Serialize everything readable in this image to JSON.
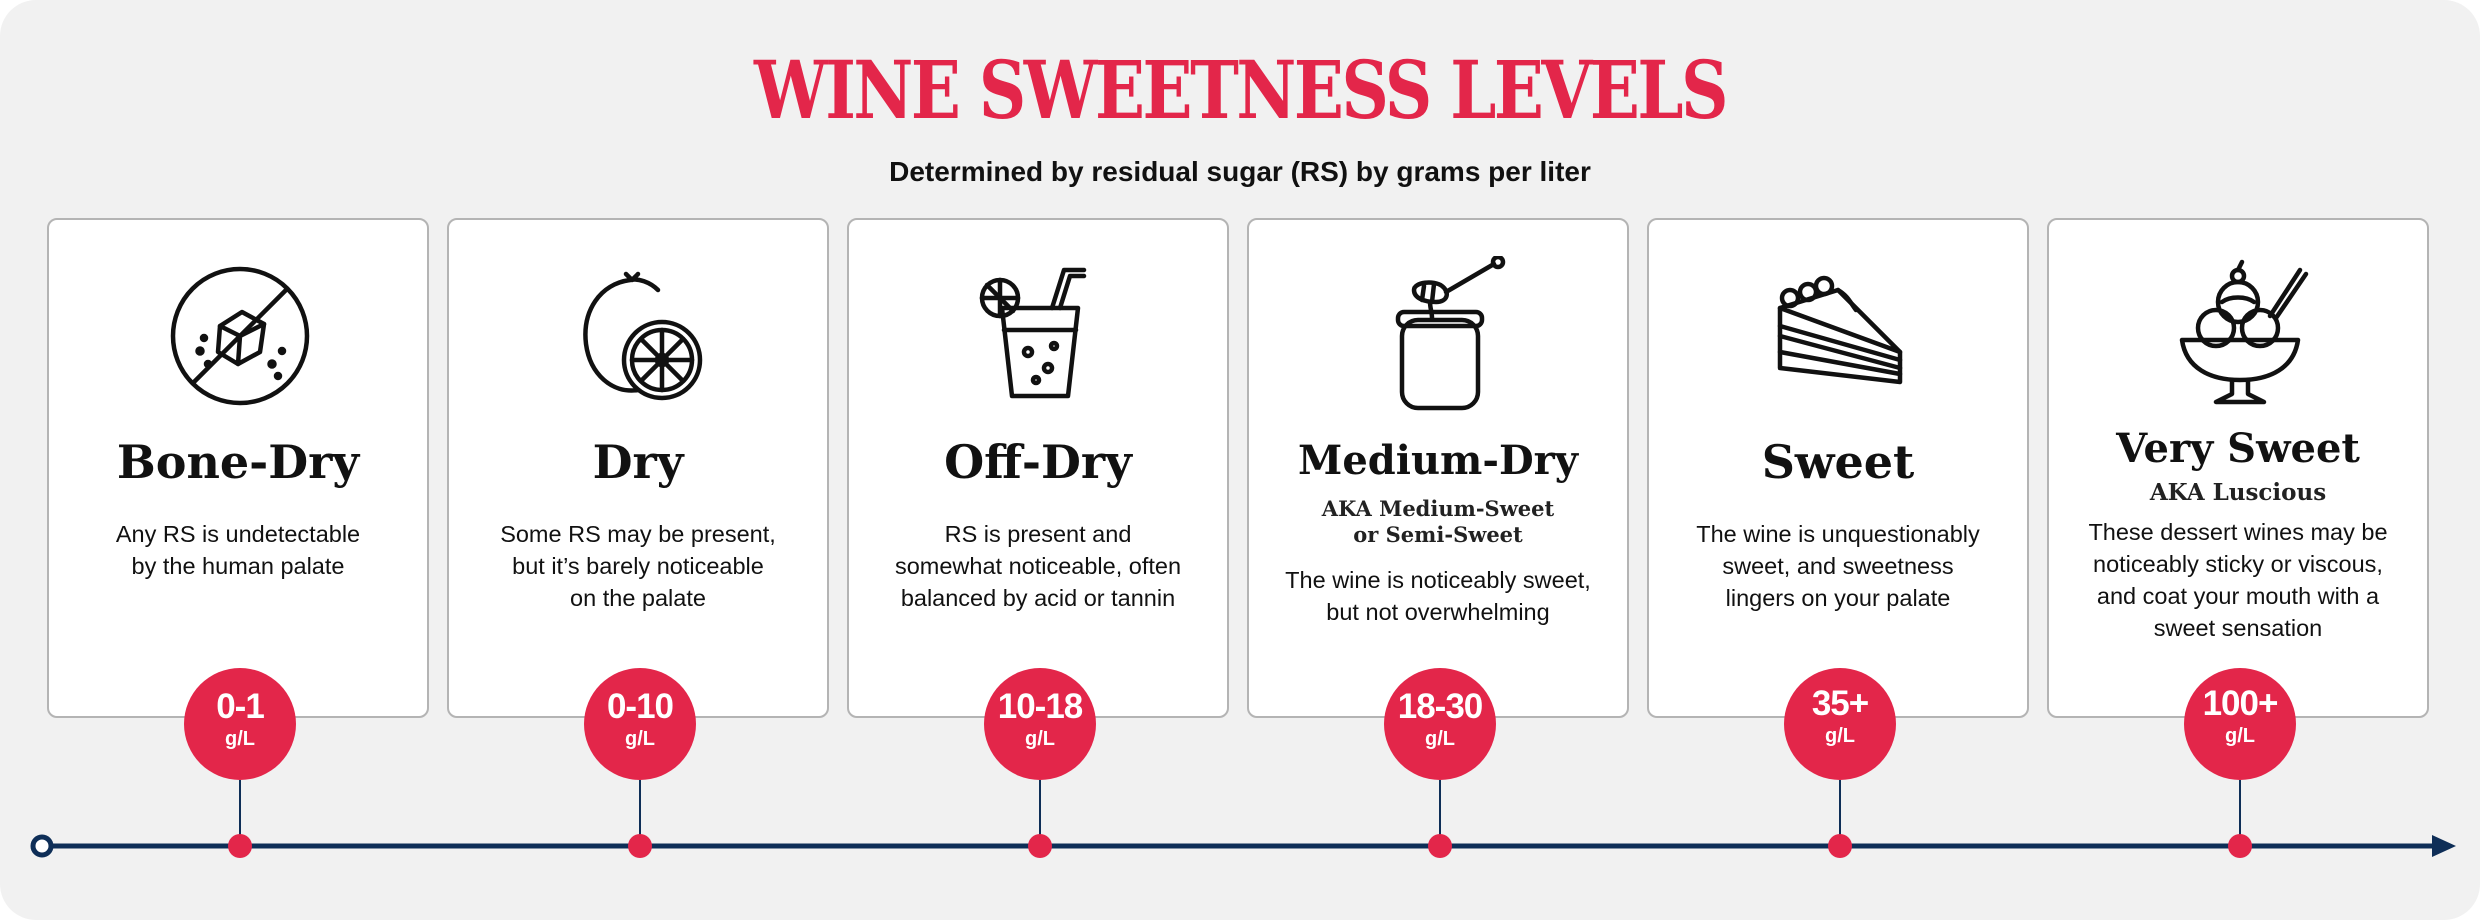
{
  "header": {
    "title": "WINE SWEETNESS LEVELS",
    "subtitle": "Determined by residual sugar (RS) by grams per liter"
  },
  "colors": {
    "accent": "#e3264a",
    "timeline": "#0e2e57",
    "background": "#f1f1f1"
  },
  "levels": [
    {
      "name": "Bone-Dry",
      "icon": "no-ice-cube-icon",
      "description": [
        "Any RS is undetectable",
        "by the human palate"
      ],
      "range": "0-1",
      "unit": "g/L"
    },
    {
      "name": "Dry",
      "icon": "lemon-icon",
      "description": [
        "Some RS may be present,",
        "but it’s barely noticeable",
        "on the palate"
      ],
      "range": "0-10",
      "unit": "g/L"
    },
    {
      "name": "Off-Dry",
      "icon": "cocktail-glass-icon",
      "description": [
        "RS is present and",
        "somewhat noticeable, often",
        "balanced by acid or tannin"
      ],
      "range": "10-18",
      "unit": "g/L"
    },
    {
      "name": "Medium-Dry",
      "icon": "honey-jar-icon",
      "aka": [
        "AKA Medium-Sweet",
        "or Semi-Sweet"
      ],
      "description": [
        "The wine is noticeably sweet,",
        "but not overwhelming"
      ],
      "range": "18-30",
      "unit": "g/L"
    },
    {
      "name": "Sweet",
      "icon": "cake-slice-icon",
      "description": [
        "The wine is unquestionably",
        "sweet, and sweetness",
        "lingers on your palate"
      ],
      "range": "35+",
      "unit": "g/L"
    },
    {
      "name": "Very Sweet",
      "icon": "ice-cream-sundae-icon",
      "aka": [
        "AKA Luscious"
      ],
      "description": [
        "These dessert wines may be",
        "noticeably sticky or viscous,",
        "and coat your mouth with a",
        "sweet sensation"
      ],
      "range": "100+",
      "unit": "g/L"
    }
  ]
}
